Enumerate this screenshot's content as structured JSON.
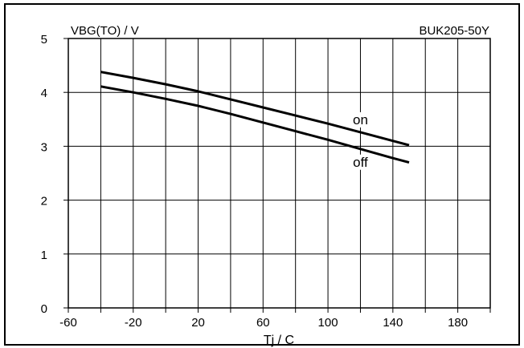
{
  "chart_data": {
    "type": "line",
    "ylabel": "VBG(TO) / V",
    "xlabel": "Tj / C",
    "part_number": "BUK205-50Y",
    "xlim": [
      -60,
      200
    ],
    "ylim": [
      0,
      5
    ],
    "x_ticks": [
      -60,
      -40,
      -20,
      0,
      20,
      40,
      60,
      80,
      100,
      120,
      140,
      160,
      180,
      200
    ],
    "x_tick_labels": [
      "-60",
      "-20",
      "20",
      "60",
      "100",
      "140",
      "180"
    ],
    "x_tick_label_values": [
      -60,
      -20,
      20,
      60,
      100,
      140,
      180
    ],
    "y_ticks": [
      0,
      1,
      2,
      3,
      4,
      5
    ],
    "y_tick_labels": [
      "0",
      "1",
      "2",
      "3",
      "4",
      "5"
    ],
    "grid": true,
    "series": [
      {
        "name": "on",
        "x": [
          -40,
          -20,
          0,
          20,
          40,
          60,
          80,
          100,
          120,
          140,
          150
        ],
        "y": [
          4.38,
          4.27,
          4.15,
          4.02,
          3.87,
          3.72,
          3.57,
          3.42,
          3.26,
          3.1,
          3.02
        ]
      },
      {
        "name": "off",
        "x": [
          -40,
          -20,
          0,
          20,
          40,
          60,
          80,
          100,
          120,
          140,
          150
        ],
        "y": [
          4.11,
          4.0,
          3.88,
          3.75,
          3.6,
          3.44,
          3.28,
          3.12,
          2.95,
          2.78,
          2.7
        ]
      }
    ]
  }
}
